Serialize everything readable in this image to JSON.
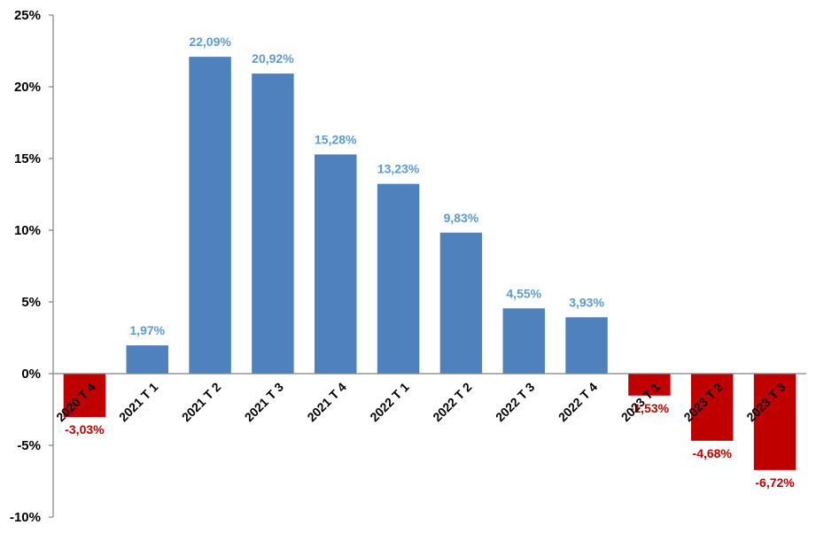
{
  "chart_data": {
    "type": "bar",
    "categories": [
      "2020 T 4",
      "2021 T 1",
      "2021 T 2",
      "2021 T 3",
      "2021 T 4",
      "2022 T 1",
      "2022 T 2",
      "2022 T 3",
      "2022 T 4",
      "2023 T 1",
      "2023 T 2",
      "2023 T 3"
    ],
    "values": [
      -3.03,
      1.97,
      22.09,
      20.92,
      15.28,
      13.23,
      9.83,
      4.55,
      3.93,
      -1.53,
      -4.68,
      -6.72
    ],
    "data_labels": [
      "-3,03%",
      "1,97%",
      "22,09%",
      "20,92%",
      "15,28%",
      "13,23%",
      "9,83%",
      "4,55%",
      "3,93%",
      "-1,53%",
      "-4,68%",
      "-6,72%"
    ],
    "yticks": [
      {
        "value": 25,
        "label": "25%"
      },
      {
        "value": 20,
        "label": "20%"
      },
      {
        "value": 15,
        "label": "15%"
      },
      {
        "value": 10,
        "label": "10%"
      },
      {
        "value": 5,
        "label": "5%"
      },
      {
        "value": 0,
        "label": "0%"
      },
      {
        "value": -5,
        "label": "-5%"
      },
      {
        "value": -10,
        "label": "-10%"
      }
    ],
    "ylim": [
      -10,
      25
    ],
    "title": "",
    "xlabel": "",
    "ylabel": "",
    "grid": false,
    "legend": false,
    "colors": {
      "positive_bar": "#4f81bd",
      "negative_bar": "#c00000",
      "positive_label": "#5b9bd5",
      "negative_label": "#c00000",
      "axis": "#808080"
    }
  }
}
